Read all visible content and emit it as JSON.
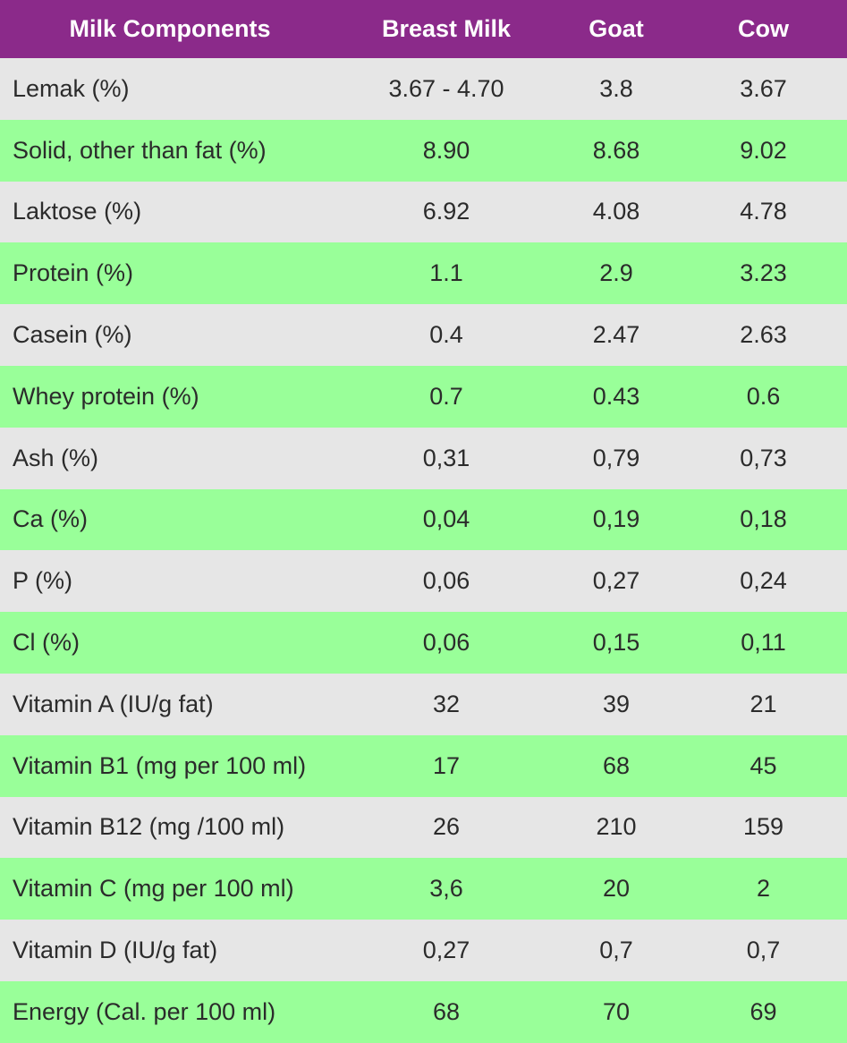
{
  "table": {
    "headers": [
      "Milk Components",
      "Breast Milk",
      "Goat",
      "Cow"
    ],
    "rows": [
      [
        "Lemak (%)",
        "3.67 - 4.70",
        "3.8",
        "3.67"
      ],
      [
        "Solid, other than fat (%)",
        "8.90",
        "8.68",
        "9.02"
      ],
      [
        "Laktose (%)",
        "6.92",
        "4.08",
        "4.78"
      ],
      [
        "Protein (%)",
        "1.1",
        "2.9",
        "3.23"
      ],
      [
        "Casein (%)",
        "0.4",
        "2.47",
        "2.63"
      ],
      [
        "Whey protein (%)",
        "0.7",
        "0.43",
        "0.6"
      ],
      [
        "Ash (%)",
        "0,31",
        "0,79",
        "0,73"
      ],
      [
        "Ca (%)",
        "0,04",
        "0,19",
        "0,18"
      ],
      [
        "P (%)",
        "0,06",
        "0,27",
        "0,24"
      ],
      [
        "Cl (%)",
        "0,06",
        "0,15",
        "0,11"
      ],
      [
        "Vitamin A (IU/g fat)",
        "32",
        "39",
        "21"
      ],
      [
        "Vitamin B1 (mg per 100 ml)",
        "17",
        "68",
        "45"
      ],
      [
        "Vitamin B12 (mg /100 ml)",
        "26",
        "210",
        "159"
      ],
      [
        "Vitamin C (mg per 100 ml)",
        "3,6",
        "20",
        "2"
      ],
      [
        "Vitamin D (IU/g fat)",
        "0,27",
        "0,7",
        "0,7"
      ],
      [
        "Energy (Cal. per 100 ml)",
        "68",
        "70",
        "69"
      ]
    ]
  },
  "colors": {
    "header_bg": "#8b2a8a",
    "header_text": "#ffffff",
    "row_gray": "#e6e6e6",
    "row_green": "#99ff99",
    "body_text": "#2b2b2b"
  }
}
